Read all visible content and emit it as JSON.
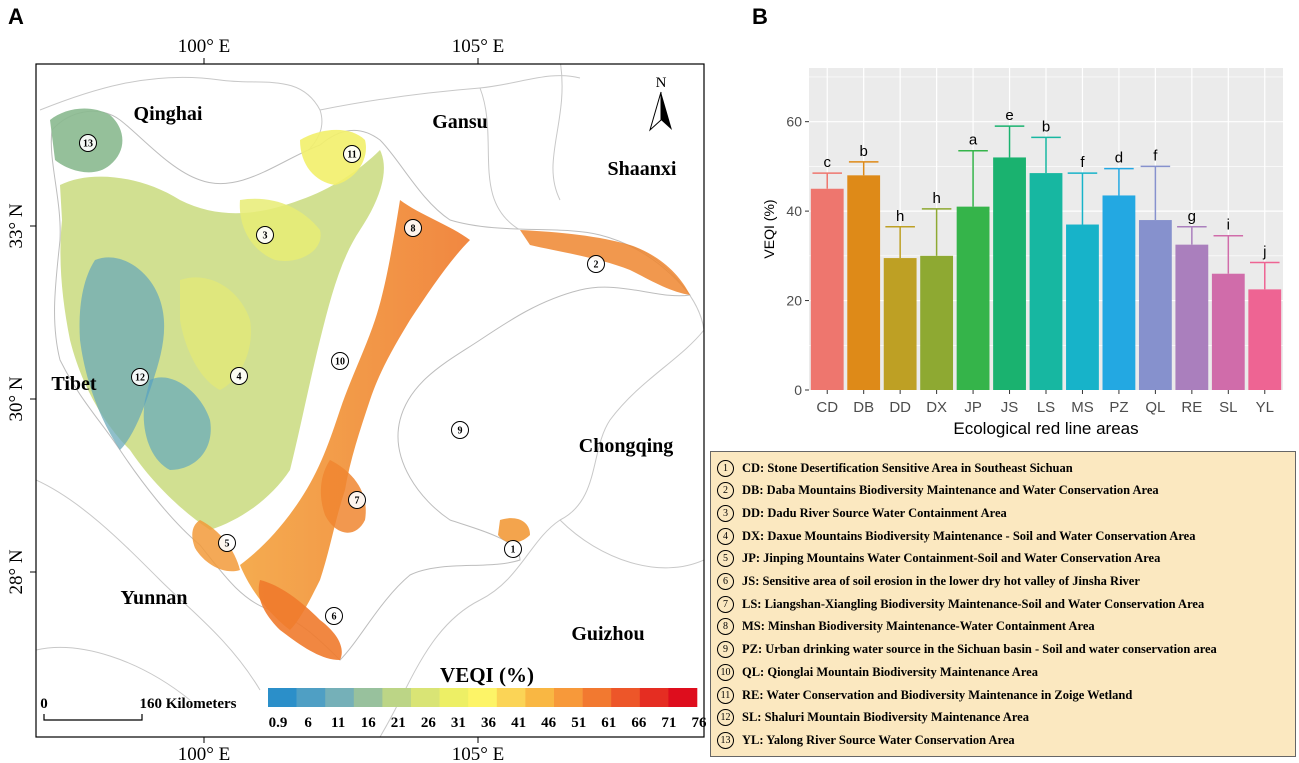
{
  "panel_a": {
    "letter": "A",
    "top_axis": [
      "100° E",
      "105° E"
    ],
    "bottom_axis": [
      "100° E",
      "105° E"
    ],
    "left_axis": [
      "33° N",
      "30° N",
      "28° N"
    ],
    "north_label": "N",
    "provinces": [
      "Qinghai",
      "Gansu",
      "Shaanxi",
      "Tibet",
      "Chongqing",
      "Yunnan",
      "Guizhou"
    ],
    "markers": [
      "13",
      "11",
      "3",
      "8",
      "2",
      "10",
      "12",
      "4",
      "9",
      "7",
      "5",
      "1",
      "6"
    ],
    "scale_zero": "0",
    "scale_label": "160 Kilometers",
    "colorbar_title": "VEQI (%)",
    "colorbar_ticks": [
      "0.9",
      "6",
      "11",
      "16",
      "21",
      "26",
      "31",
      "36",
      "41",
      "46",
      "51",
      "61",
      "66",
      "71",
      "76"
    ],
    "colorbar_colors": [
      "#2b8fc9",
      "#4f9fc4",
      "#75b0b8",
      "#98c19d",
      "#bcd586",
      "#d9e475",
      "#edef65",
      "#fdf467",
      "#fbd456",
      "#f9b743",
      "#f7993a",
      "#f27930",
      "#ed5629",
      "#e52d22",
      "#de0d1d"
    ]
  },
  "panel_b": {
    "letter": "B"
  },
  "chart_data": {
    "type": "bar",
    "title": "",
    "xlabel": "Ecological red line areas",
    "ylabel": "VEQI (%)",
    "ylim": [
      0,
      72
    ],
    "yticks": [
      "0",
      "20",
      "40",
      "60"
    ],
    "categories": [
      "CD",
      "DB",
      "DD",
      "DX",
      "JP",
      "JS",
      "LS",
      "MS",
      "PZ",
      "QL",
      "RE",
      "SL",
      "YL"
    ],
    "values": [
      45,
      48,
      29.5,
      30,
      41,
      52,
      48.5,
      37,
      43.5,
      38,
      32.5,
      26,
      22.5
    ],
    "error_upper": [
      48.5,
      51,
      36.5,
      40.5,
      53.5,
      59,
      56.5,
      48.5,
      49.5,
      50,
      36.5,
      34.5,
      28.5
    ],
    "significance_letters": [
      "c",
      "b",
      "h",
      "h",
      "a",
      "e",
      "b",
      "f",
      "d",
      "f",
      "g",
      "i",
      "j"
    ],
    "colors": [
      "#ee766e",
      "#de8a18",
      "#bea024",
      "#8ea932",
      "#35b44a",
      "#1ab26f",
      "#17b7a1",
      "#17b3c9",
      "#23a8e2",
      "#8691cd",
      "#aa7fbd",
      "#d06caa",
      "#ee6493"
    ]
  },
  "legend": [
    {
      "num": "1",
      "text": "CD: Stone Desertification Sensitive Area in Southeast Sichuan"
    },
    {
      "num": "2",
      "text": "DB: Daba Mountains Biodiversity Maintenance and Water Conservation Area"
    },
    {
      "num": "3",
      "text": "DD: Dadu River Source Water Containment Area"
    },
    {
      "num": "4",
      "text": "DX: Daxue Mountains Biodiversity Maintenance - Soil and Water Conservation Area"
    },
    {
      "num": "5",
      "text": "JP: Jinping Mountains Water Containment-Soil and Water Conservation Area"
    },
    {
      "num": "6",
      "text": "JS: Sensitive area of soil erosion in the lower dry hot valley of Jinsha River"
    },
    {
      "num": "7",
      "text": "LS: Liangshan-Xiangling Biodiversity Maintenance-Soil and Water Conservation Area"
    },
    {
      "num": "8",
      "text": "MS: Minshan Biodiversity Maintenance-Water Containment Area"
    },
    {
      "num": "9",
      "text": "PZ: Urban drinking water source in the Sichuan basin - Soil and water conservation area"
    },
    {
      "num": "10",
      "text": "QL: Qionglai Mountain Biodiversity Maintenance Area"
    },
    {
      "num": "11",
      "text": "RE: Water Conservation and Biodiversity Maintenance in Zoige Wetland"
    },
    {
      "num": "12",
      "text": "SL: Shaluri Mountain Biodiversity Maintenance Area"
    },
    {
      "num": "13",
      "text": "YL: Yalong River Source Water Conservation Area"
    }
  ]
}
